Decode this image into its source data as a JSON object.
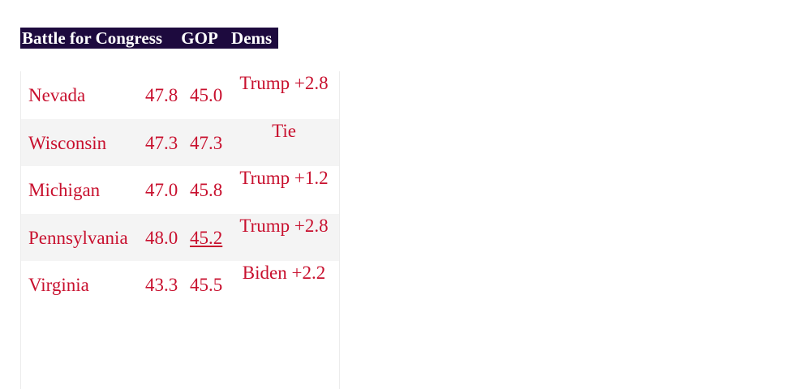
{
  "header": {
    "title": "Battle for Congress",
    "col_gop": "GOP",
    "col_dems": "Dems"
  },
  "rows": [
    {
      "state": "Nevada",
      "gop": "47.8",
      "dem": "45.0",
      "margin": "Trump +2.8"
    },
    {
      "state": "Wisconsin",
      "gop": "47.3",
      "dem": "47.3",
      "margin": "Tie"
    },
    {
      "state": "Michigan",
      "gop": "47.0",
      "dem": "45.8",
      "margin": "Trump +1.2"
    },
    {
      "state": "Pennsylvania",
      "gop": "48.0",
      "dem": "45.2",
      "margin": "Trump +2.8"
    },
    {
      "state": "Virginia",
      "gop": "43.3",
      "dem": "45.5",
      "margin": "Biden +2.2"
    }
  ],
  "colors": {
    "header_bg": "#1d0a3e",
    "header_text": "#ffffff",
    "row_text": "#c8102e",
    "alt_row_bg": "#f4f4f4"
  }
}
